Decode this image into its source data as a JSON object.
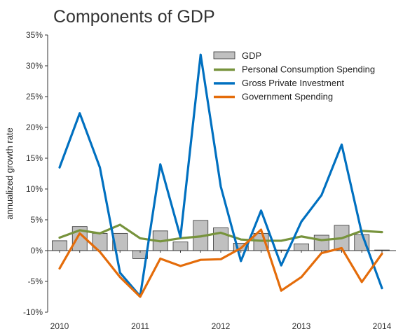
{
  "chart_data": {
    "type": "bar+line",
    "title": "Components of GDP",
    "ylabel": "annualized growth rate",
    "xlabel": "",
    "ylim": [
      -10,
      35
    ],
    "yticks": [
      -10,
      -5,
      0,
      5,
      10,
      15,
      20,
      25,
      30,
      35
    ],
    "ytick_labels": [
      "-10%",
      "-5%",
      "0%",
      "5%",
      "10%",
      "15%",
      "20%",
      "25%",
      "30%",
      "35%"
    ],
    "x_ticks": [
      2010,
      2011,
      2012,
      2013,
      2014
    ],
    "x_tick_labels": [
      "2010",
      "2011",
      "2012",
      "2013",
      "2014"
    ],
    "x": [
      2010.0,
      2010.25,
      2010.5,
      2010.75,
      2011.0,
      2011.25,
      2011.5,
      2011.75,
      2012.0,
      2012.25,
      2012.5,
      2012.75,
      2013.0,
      2013.25,
      2013.5,
      2013.75,
      2014.0
    ],
    "grid": false,
    "legend_position": "top-right",
    "bars": {
      "name": "GDP",
      "color": "#c0c0c0",
      "values": [
        1.6,
        3.9,
        2.8,
        2.8,
        -1.3,
        3.2,
        1.4,
        4.9,
        3.7,
        1.2,
        2.8,
        0.1,
        1.1,
        2.5,
        4.1,
        2.6,
        0.1
      ]
    },
    "series": [
      {
        "name": "Personal Consumption Spending",
        "color": "#77933c",
        "values": [
          2.1,
          3.3,
          2.8,
          4.2,
          2.0,
          1.5,
          2.0,
          2.3,
          2.9,
          1.8,
          1.6,
          1.6,
          2.3,
          1.7,
          2.0,
          3.2,
          3.0
        ]
      },
      {
        "name": "Gross Private Investment",
        "color": "#0070c0",
        "values": [
          13.5,
          22.3,
          13.5,
          -3.6,
          -7.4,
          14.0,
          2.2,
          31.8,
          10.4,
          -1.7,
          6.5,
          -2.4,
          4.7,
          9.0,
          17.2,
          2.8,
          -6.1
        ]
      },
      {
        "name": "Government Spending",
        "color": "#e46c0a",
        "values": [
          -2.9,
          2.8,
          -0.2,
          -4.3,
          -7.5,
          -1.3,
          -2.5,
          -1.5,
          -1.4,
          0.4,
          3.4,
          -6.5,
          -4.3,
          -0.4,
          0.4,
          -5.1,
          -0.5
        ]
      }
    ]
  }
}
